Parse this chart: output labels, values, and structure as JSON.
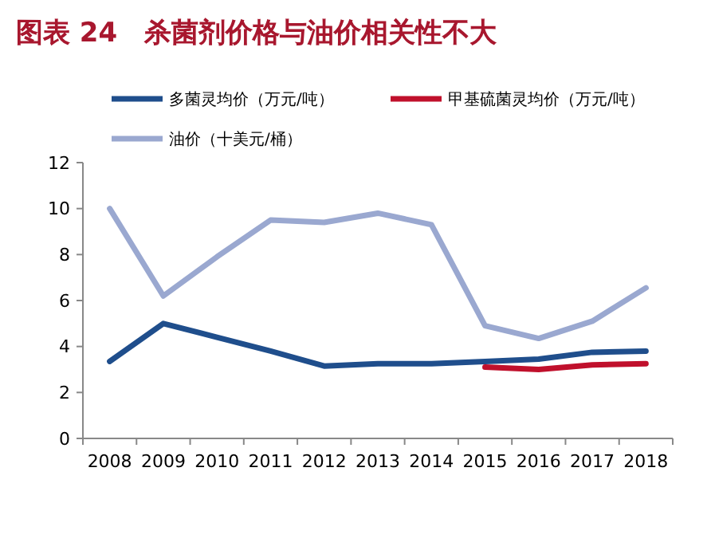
{
  "chart_data": {
    "type": "line",
    "title": "图表 24　杀菌剂价格与油价相关性不大",
    "categories": [
      "2008",
      "2009",
      "2010",
      "2011",
      "2012",
      "2013",
      "2014",
      "2015",
      "2016",
      "2017",
      "2018"
    ],
    "series": [
      {
        "name": "多菌灵均价（万元/吨）",
        "color": "#1f4e8c",
        "values": [
          3.35,
          5.0,
          4.4,
          3.8,
          3.15,
          3.25,
          3.25,
          3.35,
          3.45,
          3.75,
          3.8
        ]
      },
      {
        "name": "甲基硫菌灵均价（万元/吨）",
        "color": "#c0102c",
        "values": [
          null,
          null,
          null,
          null,
          null,
          null,
          null,
          3.1,
          3.0,
          3.2,
          3.25
        ]
      },
      {
        "name": "油价（十美元/桶）",
        "color": "#9aa8d0",
        "values": [
          10.0,
          6.2,
          7.9,
          9.5,
          9.4,
          9.8,
          9.3,
          4.9,
          4.35,
          5.1,
          6.55
        ]
      }
    ],
    "ylim": [
      0,
      12
    ],
    "yticks": [
      0,
      2,
      4,
      6,
      8,
      10,
      12
    ],
    "grid": false,
    "legend": "top",
    "marker": "none",
    "line_style": "solid"
  }
}
